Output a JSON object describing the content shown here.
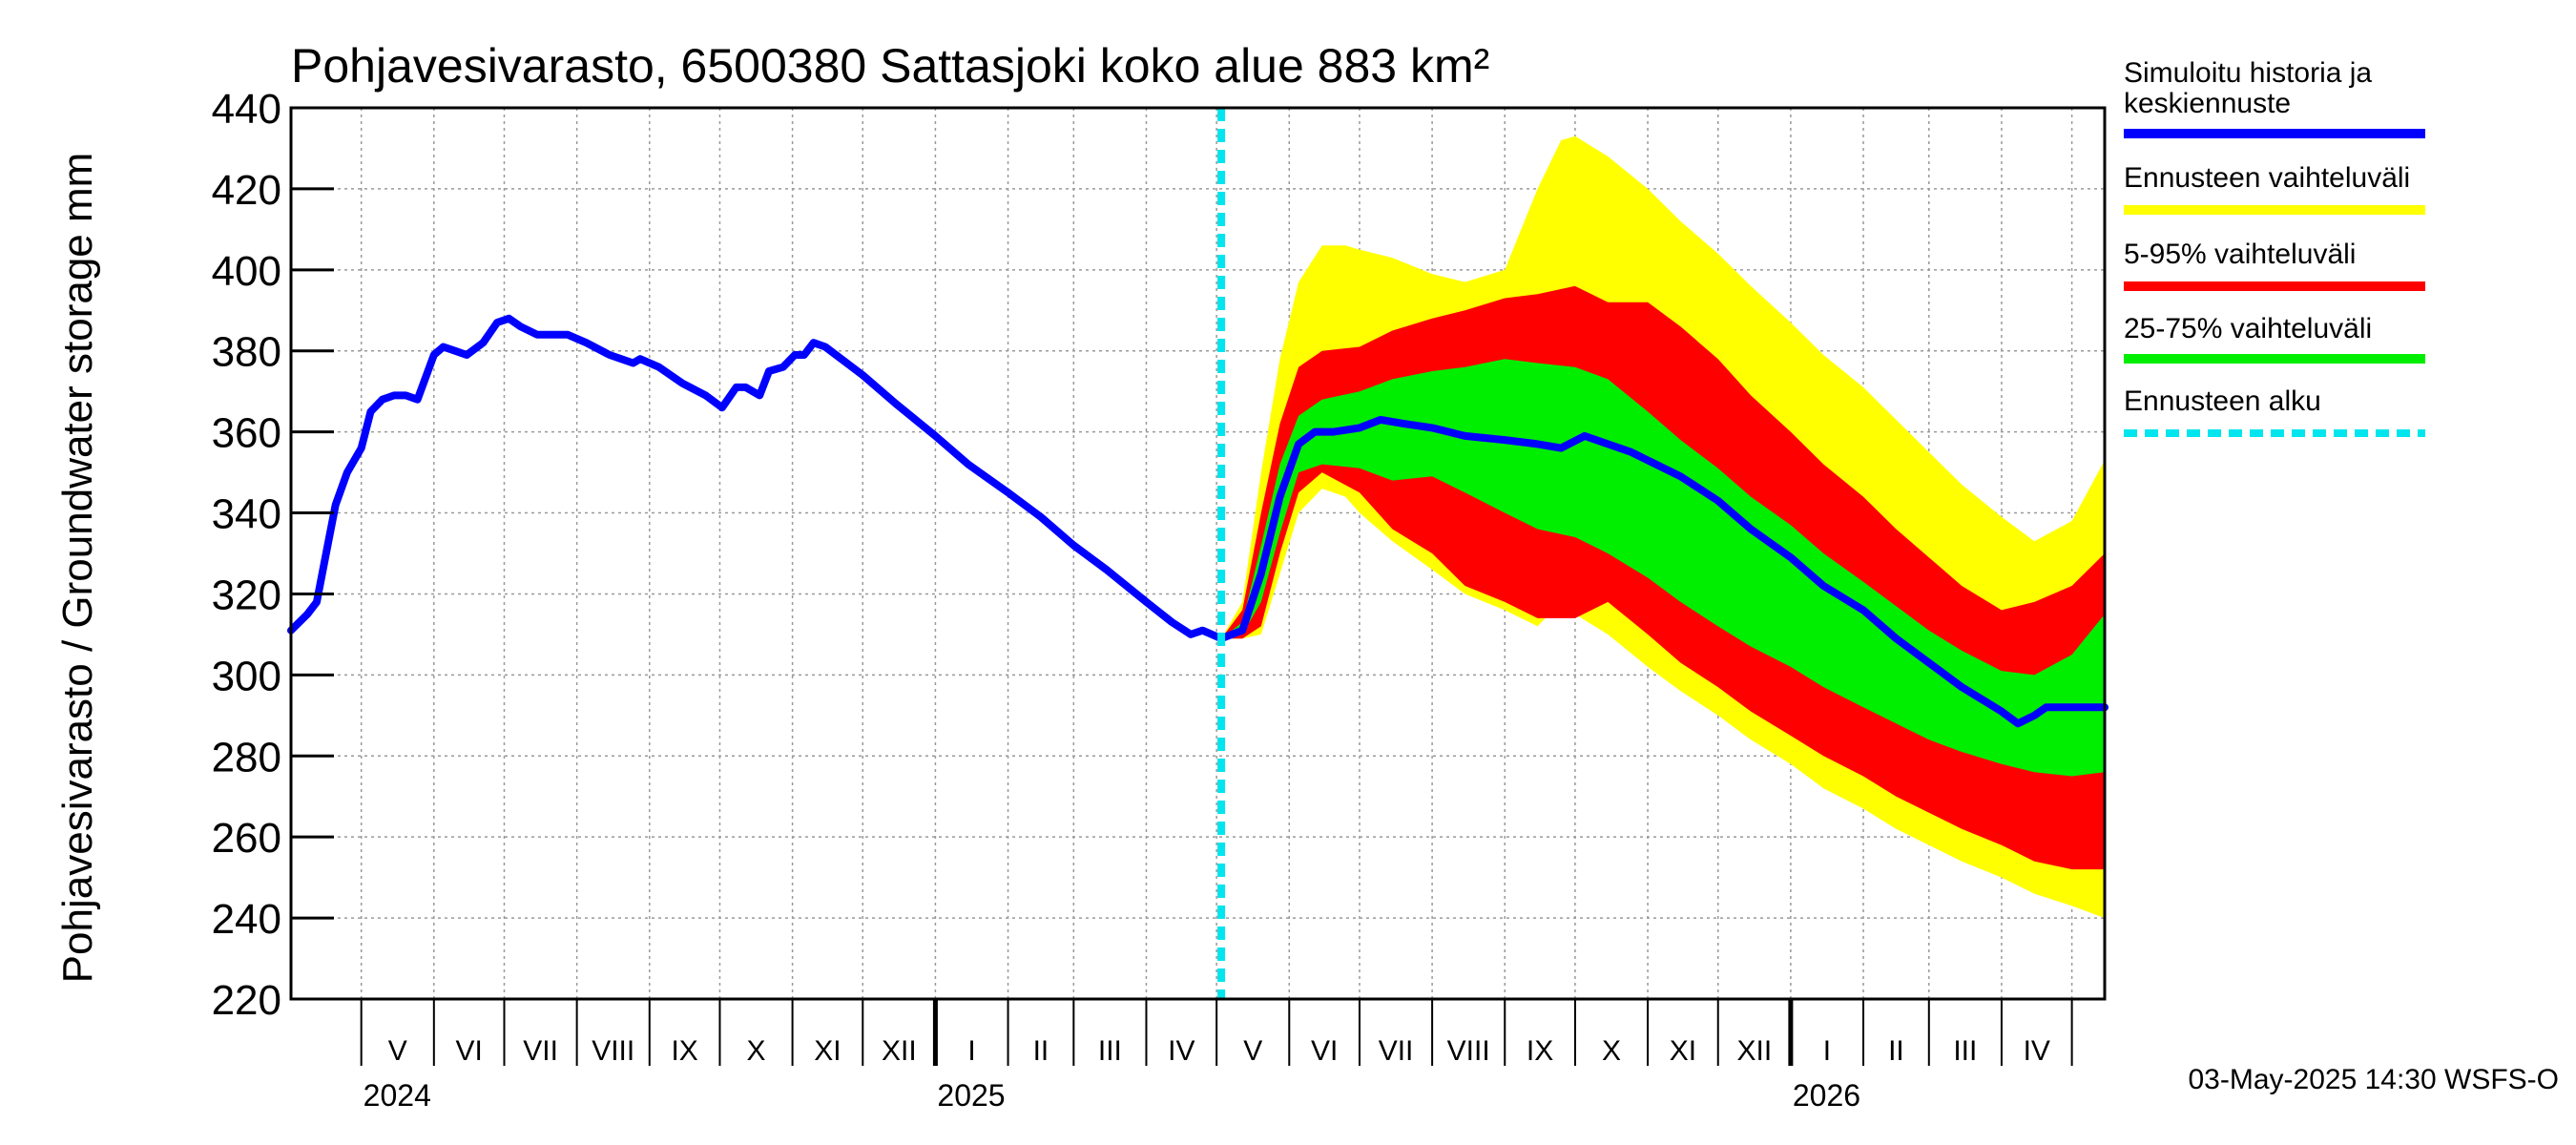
{
  "chart_data": {
    "type": "area",
    "title": "Pohjavesivarasto, 6500380 Sattasjoki koko alue 883 km²",
    "ylabel": "Pohjavesivarasto / Groundwater storage   mm",
    "ylim": [
      220,
      440
    ],
    "yticks": [
      220,
      240,
      260,
      280,
      300,
      320,
      340,
      360,
      380,
      400,
      420,
      440
    ],
    "x_start": "2024-04-01",
    "x_end": "2026-05-15",
    "forecast_start": "2025-05-03",
    "months": [
      {
        "label": "V",
        "date": "2024-05-01"
      },
      {
        "label": "VI",
        "date": "2024-06-01"
      },
      {
        "label": "VII",
        "date": "2024-07-01"
      },
      {
        "label": "VIII",
        "date": "2024-08-01"
      },
      {
        "label": "IX",
        "date": "2024-09-01"
      },
      {
        "label": "X",
        "date": "2024-10-01"
      },
      {
        "label": "XI",
        "date": "2024-11-01"
      },
      {
        "label": "XII",
        "date": "2024-12-01"
      },
      {
        "label": "I",
        "date": "2025-01-01"
      },
      {
        "label": "II",
        "date": "2025-02-01"
      },
      {
        "label": "III",
        "date": "2025-03-01"
      },
      {
        "label": "IV",
        "date": "2025-04-01"
      },
      {
        "label": "V",
        "date": "2025-05-01"
      },
      {
        "label": "VI",
        "date": "2025-06-01"
      },
      {
        "label": "VII",
        "date": "2025-07-01"
      },
      {
        "label": "VIII",
        "date": "2025-08-01"
      },
      {
        "label": "IX",
        "date": "2025-09-01"
      },
      {
        "label": "X",
        "date": "2025-10-01"
      },
      {
        "label": "XI",
        "date": "2025-11-01"
      },
      {
        "label": "XII",
        "date": "2025-12-01"
      },
      {
        "label": "I",
        "date": "2026-01-01"
      },
      {
        "label": "II",
        "date": "2026-02-01"
      },
      {
        "label": "III",
        "date": "2026-03-01"
      },
      {
        "label": "IV",
        "date": "2026-04-01"
      },
      {
        "label": "",
        "date": "2026-05-01"
      }
    ],
    "years": [
      {
        "label": "2024",
        "date": "2024-05-01"
      },
      {
        "label": "2025",
        "date": "2025-01-01"
      },
      {
        "label": "2026",
        "date": "2026-01-01"
      }
    ],
    "history": [
      [
        "2024-04-01",
        311
      ],
      [
        "2024-04-08",
        315
      ],
      [
        "2024-04-12",
        318
      ],
      [
        "2024-04-16",
        330
      ],
      [
        "2024-04-20",
        342
      ],
      [
        "2024-04-25",
        350
      ],
      [
        "2024-05-01",
        356
      ],
      [
        "2024-05-05",
        365
      ],
      [
        "2024-05-10",
        368
      ],
      [
        "2024-05-15",
        369
      ],
      [
        "2024-05-20",
        369
      ],
      [
        "2024-05-25",
        368
      ],
      [
        "2024-06-01",
        379
      ],
      [
        "2024-06-05",
        381
      ],
      [
        "2024-06-10",
        380
      ],
      [
        "2024-06-15",
        379
      ],
      [
        "2024-06-22",
        382
      ],
      [
        "2024-06-28",
        387
      ],
      [
        "2024-07-03",
        388
      ],
      [
        "2024-07-08",
        386
      ],
      [
        "2024-07-15",
        384
      ],
      [
        "2024-07-20",
        384
      ],
      [
        "2024-07-28",
        384
      ],
      [
        "2024-08-05",
        382
      ],
      [
        "2024-08-15",
        379
      ],
      [
        "2024-08-25",
        377
      ],
      [
        "2024-08-28",
        378
      ],
      [
        "2024-09-05",
        376
      ],
      [
        "2024-09-15",
        372
      ],
      [
        "2024-09-25",
        369
      ],
      [
        "2024-10-02",
        366
      ],
      [
        "2024-10-08",
        371
      ],
      [
        "2024-10-12",
        371
      ],
      [
        "2024-10-18",
        369
      ],
      [
        "2024-10-22",
        375
      ],
      [
        "2024-10-28",
        376
      ],
      [
        "2024-11-02",
        379
      ],
      [
        "2024-11-06",
        379
      ],
      [
        "2024-11-10",
        382
      ],
      [
        "2024-11-15",
        381
      ],
      [
        "2024-12-01",
        374
      ],
      [
        "2024-12-15",
        367
      ],
      [
        "2025-01-01",
        359
      ],
      [
        "2025-01-15",
        352
      ],
      [
        "2025-02-01",
        345
      ],
      [
        "2025-02-15",
        339
      ],
      [
        "2025-03-01",
        332
      ],
      [
        "2025-03-15",
        326
      ],
      [
        "2025-04-01",
        318
      ],
      [
        "2025-04-12",
        313
      ],
      [
        "2025-04-20",
        310
      ],
      [
        "2025-04-25",
        311
      ],
      [
        "2025-05-03",
        309
      ]
    ],
    "median": [
      [
        "2025-05-03",
        309
      ],
      [
        "2025-05-12",
        311
      ],
      [
        "2025-05-20",
        325
      ],
      [
        "2025-05-28",
        344
      ],
      [
        "2025-06-05",
        357
      ],
      [
        "2025-06-12",
        360
      ],
      [
        "2025-06-20",
        360
      ],
      [
        "2025-07-01",
        361
      ],
      [
        "2025-07-10",
        363
      ],
      [
        "2025-07-20",
        362
      ],
      [
        "2025-08-01",
        361
      ],
      [
        "2025-08-15",
        359
      ],
      [
        "2025-09-01",
        358
      ],
      [
        "2025-09-15",
        357
      ],
      [
        "2025-09-25",
        356
      ],
      [
        "2025-10-05",
        359
      ],
      [
        "2025-10-15",
        357
      ],
      [
        "2025-10-25",
        355
      ],
      [
        "2025-11-01",
        353
      ],
      [
        "2025-11-15",
        349
      ],
      [
        "2025-12-01",
        343
      ],
      [
        "2025-12-15",
        336
      ],
      [
        "2026-01-01",
        329
      ],
      [
        "2026-01-15",
        322
      ],
      [
        "2026-02-01",
        316
      ],
      [
        "2026-02-15",
        309
      ],
      [
        "2026-03-01",
        303
      ],
      [
        "2026-03-15",
        297
      ],
      [
        "2026-04-01",
        291
      ],
      [
        "2026-04-08",
        288
      ],
      [
        "2026-04-15",
        290
      ],
      [
        "2026-04-20",
        292
      ],
      [
        "2026-05-15",
        292
      ]
    ],
    "band_25_75": {
      "x": [
        "2025-05-03",
        "2025-05-12",
        "2025-05-20",
        "2025-05-28",
        "2025-06-05",
        "2025-06-15",
        "2025-07-01",
        "2025-07-15",
        "2025-08-01",
        "2025-08-15",
        "2025-09-01",
        "2025-09-15",
        "2025-10-01",
        "2025-10-15",
        "2025-11-01",
        "2025-11-15",
        "2025-12-01",
        "2025-12-15",
        "2026-01-01",
        "2026-01-15",
        "2026-02-01",
        "2026-02-15",
        "2026-03-01",
        "2026-03-15",
        "2026-04-01",
        "2026-04-15",
        "2026-05-01",
        "2026-05-15"
      ],
      "lower": [
        309,
        310,
        318,
        335,
        350,
        352,
        351,
        348,
        349,
        345,
        340,
        336,
        334,
        330,
        324,
        318,
        312,
        307,
        302,
        297,
        292,
        288,
        284,
        281,
        278,
        276,
        275,
        276
      ],
      "upper": [
        309,
        313,
        332,
        352,
        364,
        368,
        370,
        373,
        375,
        376,
        378,
        377,
        376,
        373,
        365,
        358,
        351,
        344,
        337,
        330,
        323,
        317,
        311,
        306,
        301,
        300,
        305,
        315
      ]
    },
    "band_5_95": {
      "x": [
        "2025-05-03",
        "2025-05-12",
        "2025-05-20",
        "2025-05-28",
        "2025-06-05",
        "2025-06-15",
        "2025-07-01",
        "2025-07-15",
        "2025-08-01",
        "2025-08-15",
        "2025-09-01",
        "2025-09-15",
        "2025-10-01",
        "2025-10-15",
        "2025-11-01",
        "2025-11-15",
        "2025-12-01",
        "2025-12-15",
        "2026-01-01",
        "2026-01-15",
        "2026-02-01",
        "2026-02-15",
        "2026-03-01",
        "2026-03-15",
        "2026-04-01",
        "2026-04-15",
        "2026-05-01",
        "2026-05-15"
      ],
      "lower": [
        309,
        309,
        312,
        330,
        345,
        350,
        345,
        336,
        330,
        322,
        318,
        314,
        314,
        318,
        310,
        303,
        297,
        291,
        285,
        280,
        275,
        270,
        266,
        262,
        258,
        254,
        252,
        252
      ],
      "upper": [
        309,
        316,
        340,
        362,
        376,
        380,
        381,
        385,
        388,
        390,
        393,
        394,
        396,
        392,
        392,
        386,
        378,
        369,
        360,
        352,
        344,
        336,
        329,
        322,
        316,
        318,
        322,
        330
      ]
    },
    "band_full": {
      "x": [
        "2025-05-03",
        "2025-05-12",
        "2025-05-20",
        "2025-05-28",
        "2025-06-05",
        "2025-06-15",
        "2025-06-25",
        "2025-07-01",
        "2025-07-15",
        "2025-08-01",
        "2025-08-15",
        "2025-09-01",
        "2025-09-15",
        "2025-09-25",
        "2025-10-01",
        "2025-10-15",
        "2025-11-01",
        "2025-11-15",
        "2025-12-01",
        "2025-12-15",
        "2026-01-01",
        "2026-01-15",
        "2026-02-01",
        "2026-02-15",
        "2026-03-01",
        "2026-03-15",
        "2026-04-01",
        "2026-04-15",
        "2026-05-01",
        "2026-05-15"
      ],
      "lower": [
        309,
        309,
        310,
        325,
        340,
        346,
        344,
        340,
        333,
        326,
        320,
        316,
        312,
        318,
        315,
        310,
        302,
        296,
        290,
        284,
        278,
        272,
        267,
        262,
        258,
        254,
        250,
        246,
        243,
        240
      ],
      "upper": [
        309,
        318,
        350,
        378,
        397,
        406,
        406,
        405,
        403,
        399,
        397,
        400,
        420,
        432,
        433,
        428,
        420,
        412,
        404,
        396,
        387,
        379,
        371,
        363,
        355,
        347,
        339,
        333,
        338,
        353
      ]
    },
    "legend": [
      {
        "label_line1": "Simuloitu historia ja",
        "label_line2": "keskiennuste",
        "color": "#0000ff",
        "style": "solid"
      },
      {
        "label_line1": "Ennusteen vaihteluväli",
        "label_line2": "",
        "color": "#ffff00",
        "style": "solid"
      },
      {
        "label_line1": "5-95% vaihteluväli",
        "label_line2": "",
        "color": "#ff0000",
        "style": "solid"
      },
      {
        "label_line1": "25-75% vaihteluväli",
        "label_line2": "",
        "color": "#00ee00",
        "style": "solid"
      },
      {
        "label_line1": "Ennusteen alku",
        "label_line2": "",
        "color": "#00e5ee",
        "style": "dashed"
      }
    ],
    "colors": {
      "history": "#0000ff",
      "full": "#ffff00",
      "p5_95": "#ff0000",
      "p25_75": "#00ee00",
      "forecast_start": "#00e5ee",
      "grid": "#999999"
    }
  },
  "footer": {
    "timestamp": "03-May-2025 14:30 WSFS-O"
  }
}
